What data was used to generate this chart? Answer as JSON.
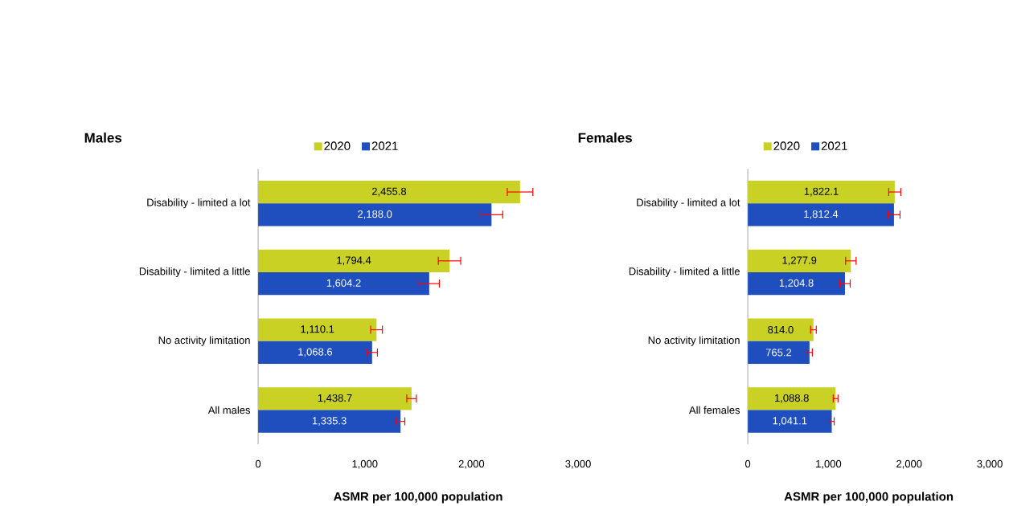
{
  "chart_data": [
    {
      "type": "bar",
      "orientation": "horizontal",
      "title": "Males",
      "xlabel": "ASMR per 100,000 population",
      "categories": [
        "Disability - limited a lot",
        "Disability - limited a little",
        "No activity limitation",
        "All males"
      ],
      "series": [
        {
          "name": "2020",
          "color": "#c9d224",
          "values": [
            2455.8,
            1794.4,
            1110.1,
            1438.7
          ],
          "errors": [
            120,
            105,
            55,
            45
          ],
          "value_labels": [
            "2,455.8",
            "1,794.4",
            "1,110.1",
            "1,438.7"
          ]
        },
        {
          "name": "2021",
          "color": "#1f4fbf",
          "values": [
            2188.0,
            1604.2,
            1068.6,
            1335.3
          ],
          "errors": [
            105,
            95,
            50,
            40
          ],
          "value_labels": [
            "2,188.0",
            "1,604.2",
            "1,068.6",
            "1,335.3"
          ]
        }
      ],
      "xlim": [
        0,
        3000
      ],
      "xticks": [
        {
          "value": 0,
          "label": "0"
        },
        {
          "value": 1000,
          "label": "1,000"
        },
        {
          "value": 2000,
          "label": "2,000"
        },
        {
          "value": 3000,
          "label": "3,000"
        }
      ],
      "legend": "top",
      "grid": false
    },
    {
      "type": "bar",
      "orientation": "horizontal",
      "title": "Females",
      "xlabel": "ASMR per 100,000 population",
      "categories": [
        "Disability - limited a lot",
        "Disability - limited a little",
        "No activity limitation",
        "All females"
      ],
      "series": [
        {
          "name": "2020",
          "color": "#c9d224",
          "values": [
            1822.1,
            1277.9,
            814.0,
            1088.8
          ],
          "errors": [
            75,
            65,
            35,
            30
          ],
          "value_labels": [
            "1,822.1",
            "1,277.9",
            "814.0",
            "1,088.8"
          ]
        },
        {
          "name": "2021",
          "color": "#1f4fbf",
          "values": [
            1812.4,
            1204.8,
            765.2,
            1041.1
          ],
          "errors": [
            75,
            65,
            35,
            30
          ],
          "value_labels": [
            "1,812.4",
            "1,204.8",
            "765.2",
            "1,041.1"
          ]
        }
      ],
      "xlim": [
        0,
        3000
      ],
      "xticks": [
        {
          "value": 0,
          "label": "0"
        },
        {
          "value": 1000,
          "label": "1,000"
        },
        {
          "value": 2000,
          "label": "2,000"
        },
        {
          "value": 3000,
          "label": "3,000"
        }
      ],
      "legend": "top",
      "grid": false
    }
  ]
}
